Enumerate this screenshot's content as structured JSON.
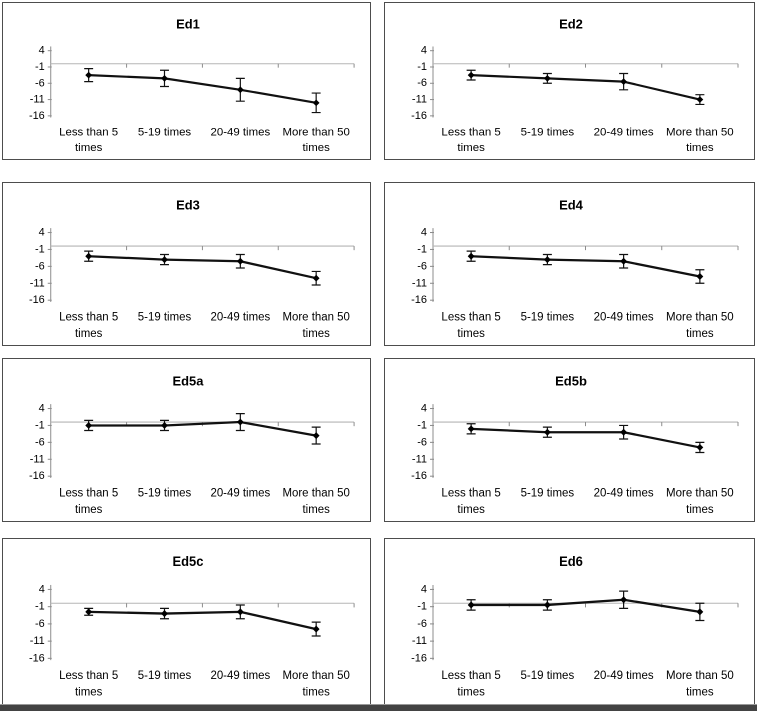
{
  "figure": {
    "type": "multi-panel-errorbar-line-charts",
    "panel_count": 8,
    "panel_titles": [
      "Ed1",
      "Ed2",
      "Ed3",
      "Ed4",
      "Ed5a",
      "Ed5b",
      "Ed5c",
      "Ed6"
    ]
  },
  "colors": {
    "background": "#ffffff",
    "panel_border": "#4d4d4d",
    "axis": "#8c8c8c",
    "zero_line": "#b5b5b5",
    "series_line": "#111111",
    "marker": "#000000",
    "text": "#000000",
    "bottom_edge": "#434343"
  },
  "axis": {
    "y_ticks": [
      4,
      -1,
      -6,
      -11,
      -16
    ],
    "y_min": -16,
    "y_max": 4,
    "baseline_value": 0
  },
  "categories": [
    "Less than 5 times",
    "5-19 times",
    "20-49 times",
    "More than 50 times"
  ],
  "category_lines": [
    [
      "Less than 5",
      "times"
    ],
    [
      "5-19 times",
      ""
    ],
    [
      "20-49 times",
      ""
    ],
    [
      "More than 50",
      "times"
    ]
  ],
  "chart_data": [
    {
      "type": "line",
      "title": "Ed1",
      "categories": [
        "Less than 5 times",
        "5-19 times",
        "20-49 times",
        "More than 50 times"
      ],
      "values": [
        -3.5,
        -4.5,
        -8,
        -12
      ],
      "errors": [
        2,
        2.5,
        3.5,
        3
      ],
      "ylim": [
        -16,
        4
      ],
      "yticks": [
        4,
        -1,
        -6,
        -11,
        -16
      ],
      "grid": false,
      "legend": "none"
    },
    {
      "type": "line",
      "title": "Ed2",
      "categories": [
        "Less than 5 times",
        "5-19 times",
        "20-49 times",
        "More than 50 times"
      ],
      "values": [
        -3.5,
        -4.5,
        -5.5,
        -11
      ],
      "errors": [
        1.5,
        1.5,
        2.5,
        1.5
      ],
      "ylim": [
        -16,
        4
      ],
      "yticks": [
        4,
        -1,
        -6,
        -11,
        -16
      ],
      "grid": false,
      "legend": "none"
    },
    {
      "type": "line",
      "title": "Ed3",
      "categories": [
        "Less than 5 times",
        "5-19 times",
        "20-49 times",
        "More than 50 times"
      ],
      "values": [
        -3,
        -4,
        -4.5,
        -9.5
      ],
      "errors": [
        1.5,
        1.5,
        2,
        2
      ],
      "ylim": [
        -16,
        4
      ],
      "yticks": [
        4,
        -1,
        -6,
        -11,
        -16
      ],
      "grid": false,
      "legend": "none"
    },
    {
      "type": "line",
      "title": "Ed4",
      "categories": [
        "Less than 5 times",
        "5-19 times",
        "20-49 times",
        "More than 50 times"
      ],
      "values": [
        -3,
        -4,
        -4.5,
        -9
      ],
      "errors": [
        1.5,
        1.5,
        2,
        2
      ],
      "ylim": [
        -16,
        4
      ],
      "yticks": [
        4,
        -1,
        -6,
        -11,
        -16
      ],
      "grid": false,
      "legend": "none"
    },
    {
      "type": "line",
      "title": "Ed5a",
      "categories": [
        "Less than 5 times",
        "5-19 times",
        "20-49 times",
        "More than 50 times"
      ],
      "values": [
        -1,
        -1,
        0,
        -4
      ],
      "errors": [
        1.5,
        1.5,
        2.5,
        2.5
      ],
      "ylim": [
        -16,
        4
      ],
      "yticks": [
        4,
        -1,
        -6,
        -11,
        -16
      ],
      "grid": false,
      "legend": "none"
    },
    {
      "type": "line",
      "title": "Ed5b",
      "categories": [
        "Less than 5 times",
        "5-19 times",
        "20-49 times",
        "More than 50 times"
      ],
      "values": [
        -2,
        -3,
        -3,
        -7.5
      ],
      "errors": [
        1.5,
        1.5,
        2,
        1.5
      ],
      "ylim": [
        -16,
        4
      ],
      "yticks": [
        4,
        -1,
        -6,
        -11,
        -16
      ],
      "grid": false,
      "legend": "none"
    },
    {
      "type": "line",
      "title": "Ed5c",
      "categories": [
        "Less than 5 times",
        "5-19 times",
        "20-49 times",
        "More than 50 times"
      ],
      "values": [
        -2.5,
        -3,
        -2.5,
        -7.5
      ],
      "errors": [
        1,
        1.5,
        2,
        2
      ],
      "ylim": [
        -16,
        4
      ],
      "yticks": [
        4,
        -1,
        -6,
        -11,
        -16
      ],
      "grid": false,
      "legend": "none"
    },
    {
      "type": "line",
      "title": "Ed6",
      "categories": [
        "Less than 5 times",
        "5-19 times",
        "20-49 times",
        "More than 50 times"
      ],
      "values": [
        -0.5,
        -0.5,
        1,
        -2.5
      ],
      "errors": [
        1.5,
        1.5,
        2.5,
        2.5
      ],
      "ylim": [
        -16,
        4
      ],
      "yticks": [
        4,
        -1,
        -6,
        -11,
        -16
      ],
      "grid": false,
      "legend": "none"
    }
  ]
}
